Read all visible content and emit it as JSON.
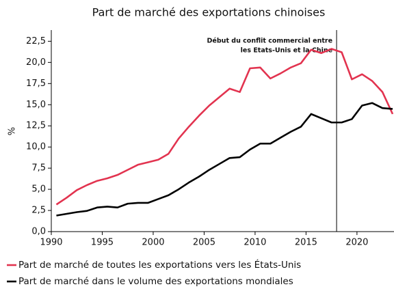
{
  "chart_data": {
    "type": "line",
    "title": "Part de marché des exportations chinoises",
    "y_label": "%",
    "x": [
      1990.5,
      1991.5,
      1992.5,
      1993.5,
      1994.5,
      1995.5,
      1996.5,
      1997.5,
      1998.5,
      1999.5,
      2000.5,
      2001.5,
      2002.5,
      2003.5,
      2004.5,
      2005.5,
      2006.5,
      2007.5,
      2008.5,
      2009.5,
      2010.5,
      2011.5,
      2012.5,
      2013.5,
      2014.5,
      2015.5,
      2016.5,
      2017.5,
      2018.5,
      2019.5,
      2020.5,
      2021.5,
      2022.5,
      2023.5
    ],
    "series": [
      {
        "name": "Part de marché de toutes les exportations vers les États-Unis",
        "color": "#e2334f",
        "values": [
          3.2,
          4.0,
          4.9,
          5.5,
          6.0,
          6.3,
          6.7,
          7.3,
          7.9,
          8.2,
          8.5,
          9.2,
          11.0,
          12.4,
          13.7,
          14.9,
          15.9,
          16.9,
          16.5,
          19.3,
          19.4,
          18.1,
          18.7,
          19.4,
          19.9,
          21.5,
          21.1,
          21.6,
          21.2,
          18.0,
          18.6,
          17.8,
          16.5,
          13.9
        ]
      },
      {
        "name": "Part de marché dans le volume des exportations mondiales",
        "color": "#000000",
        "values": [
          1.9,
          2.1,
          2.3,
          2.45,
          2.85,
          2.95,
          2.85,
          3.3,
          3.4,
          3.4,
          3.85,
          4.3,
          5.0,
          5.8,
          6.5,
          7.3,
          8.0,
          8.7,
          8.8,
          9.7,
          10.4,
          10.4,
          11.1,
          11.8,
          12.4,
          13.9,
          13.4,
          12.9,
          12.9,
          13.3,
          14.9,
          15.2,
          14.6,
          14.5
        ]
      }
    ],
    "xlim": [
      1990,
      2023.5
    ],
    "xticks": [
      1990,
      1995,
      2000,
      2005,
      2010,
      2015,
      2020
    ],
    "ylim": [
      0,
      23.5
    ],
    "yticks": [
      {
        "value": 0,
        "label": "0,0"
      },
      {
        "value": 2.5,
        "label": "2,5"
      },
      {
        "value": 5,
        "label": "5,0"
      },
      {
        "value": 7.5,
        "label": "7,5"
      },
      {
        "value": 10,
        "label": "10,0"
      },
      {
        "value": 12.5,
        "label": "12,5"
      },
      {
        "value": 15,
        "label": "15,0"
      },
      {
        "value": 17.5,
        "label": "17,5"
      },
      {
        "value": 20,
        "label": "20,0"
      },
      {
        "value": 22.5,
        "label": "22,5"
      }
    ],
    "annotation": {
      "x": 2018,
      "lines": [
        "Début du conflit commercial entre",
        "les Etats-Unis et la Chine"
      ]
    },
    "legend": "bottom-left"
  }
}
